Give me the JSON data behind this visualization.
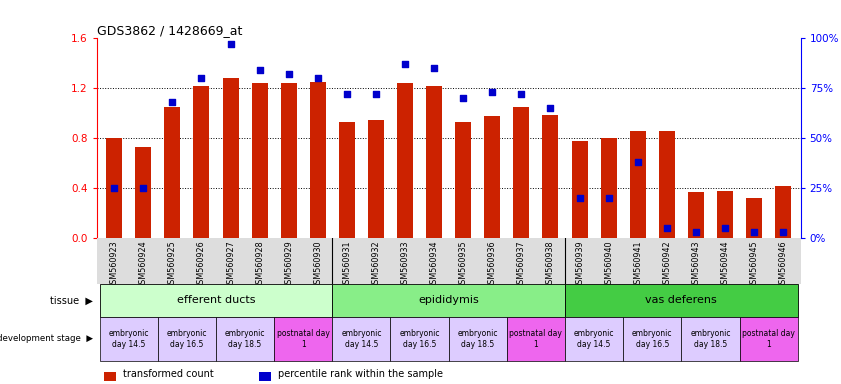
{
  "title": "GDS3862 / 1428669_at",
  "samples": [
    "GSM560923",
    "GSM560924",
    "GSM560925",
    "GSM560926",
    "GSM560927",
    "GSM560928",
    "GSM560929",
    "GSM560930",
    "GSM560931",
    "GSM560932",
    "GSM560933",
    "GSM560934",
    "GSM560935",
    "GSM560936",
    "GSM560937",
    "GSM560938",
    "GSM560939",
    "GSM560940",
    "GSM560941",
    "GSM560942",
    "GSM560943",
    "GSM560944",
    "GSM560945",
    "GSM560946"
  ],
  "transformed_count": [
    0.8,
    0.73,
    1.05,
    1.22,
    1.28,
    1.24,
    1.24,
    1.25,
    0.93,
    0.95,
    1.24,
    1.22,
    0.93,
    0.98,
    1.05,
    0.99,
    0.78,
    0.8,
    0.86,
    0.86,
    0.37,
    0.38,
    0.32,
    0.42
  ],
  "percentile_rank_pct": [
    25,
    25,
    68,
    80,
    97,
    84,
    82,
    80,
    72,
    72,
    87,
    85,
    70,
    73,
    72,
    65,
    20,
    20,
    38,
    5,
    3,
    5,
    3,
    3
  ],
  "ylim_left": [
    0,
    1.6
  ],
  "ylim_right": [
    0,
    100
  ],
  "yticks_left": [
    0.0,
    0.4,
    0.8,
    1.2,
    1.6
  ],
  "yticks_right": [
    0,
    25,
    50,
    75,
    100
  ],
  "bar_color": "#cc2200",
  "dot_color": "#0000cc",
  "bg_color": "#f0f0f0",
  "tissues": [
    {
      "label": "efferent ducts",
      "start": 0,
      "end": 8,
      "color": "#ccffcc"
    },
    {
      "label": "epididymis",
      "start": 8,
      "end": 16,
      "color": "#88ee88"
    },
    {
      "label": "vas deferens",
      "start": 16,
      "end": 24,
      "color": "#44cc44"
    }
  ],
  "dev_stages": [
    {
      "label": "embryonic\nday 14.5",
      "start": 0,
      "end": 2,
      "color": "#ddccff"
    },
    {
      "label": "embryonic\nday 16.5",
      "start": 2,
      "end": 4,
      "color": "#ddccff"
    },
    {
      "label": "embryonic\nday 18.5",
      "start": 4,
      "end": 6,
      "color": "#ddccff"
    },
    {
      "label": "postnatal day\n1",
      "start": 6,
      "end": 8,
      "color": "#ee66ee"
    },
    {
      "label": "embryonic\nday 14.5",
      "start": 8,
      "end": 10,
      "color": "#ddccff"
    },
    {
      "label": "embryonic\nday 16.5",
      "start": 10,
      "end": 12,
      "color": "#ddccff"
    },
    {
      "label": "embryonic\nday 18.5",
      "start": 12,
      "end": 14,
      "color": "#ddccff"
    },
    {
      "label": "postnatal day\n1",
      "start": 14,
      "end": 16,
      "color": "#ee66ee"
    },
    {
      "label": "embryonic\nday 14.5",
      "start": 16,
      "end": 18,
      "color": "#ddccff"
    },
    {
      "label": "embryonic\nday 16.5",
      "start": 18,
      "end": 20,
      "color": "#ddccff"
    },
    {
      "label": "embryonic\nday 18.5",
      "start": 20,
      "end": 22,
      "color": "#ddccff"
    },
    {
      "label": "postnatal day\n1",
      "start": 22,
      "end": 24,
      "color": "#ee66ee"
    }
  ]
}
